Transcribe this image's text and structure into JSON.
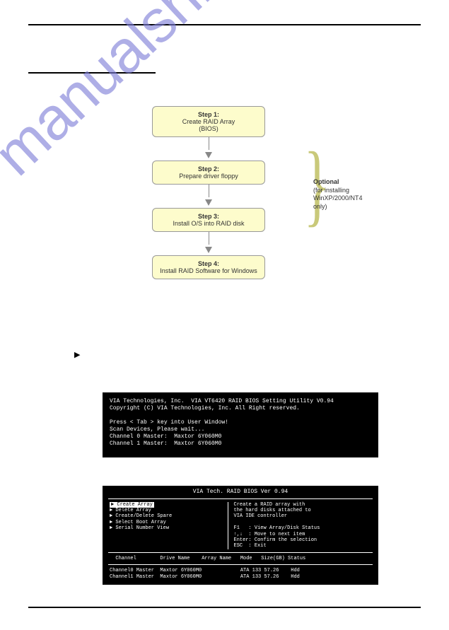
{
  "flow": {
    "steps": [
      {
        "title": "Step 1:",
        "desc": "Create RAID Array\n(BIOS)"
      },
      {
        "title": "Step 2:",
        "desc": "Prepare driver floppy"
      },
      {
        "title": "Step 3:",
        "desc": "Install O/S into RAID disk"
      },
      {
        "title": "Step 4:",
        "desc": "Install RAID Software for Windows"
      }
    ],
    "optional_title": "Optional",
    "optional_desc": "(for installing WinXP/2000/NT4 only)",
    "brace_char": "}"
  },
  "pointer": "▶",
  "bios1": {
    "l1": "VIA Technologies, Inc.  VIA VT6420 RAID BIOS Setting Utility V0.94",
    "l2": "Copyright (C) VIA Technologies, Inc. All Right reserved.",
    "l3": "",
    "l4": "Press < Tab > key into User Window!",
    "l5": "Scan Devices, Please wait...",
    "l6": "Channel 0 Master:  Maxtor 6Y060M0",
    "l7": "Channel 1 Master:  Maxtor 6Y060M0"
  },
  "bios2": {
    "title": "VIA Tech. RAID BIOS Ver 0.94",
    "menu_sel": "► Create Array",
    "menu": "► Delete Array\n► Create/Delete Spare\n► Select Boot Array\n► Serial Number View",
    "help": "Create a RAID array with\nthe hard disks attached to\nVIA IDE controller\n\nF1   : View Array/Disk Status\n↑,↓  : Move to next item\nEnter: Confirm the selection\nESC  : Exit",
    "cols": "  Channel        Drive Name    Array Name   Mode   Size(GB) Status",
    "rows": "Channel0 Master  Maxtor 6Y060M0             ATA 133 57.26    Hdd\nChannel1 Master  Maxtor 6Y060M0             ATA 133 57.26    Hdd"
  },
  "watermark": "manualshive.com"
}
